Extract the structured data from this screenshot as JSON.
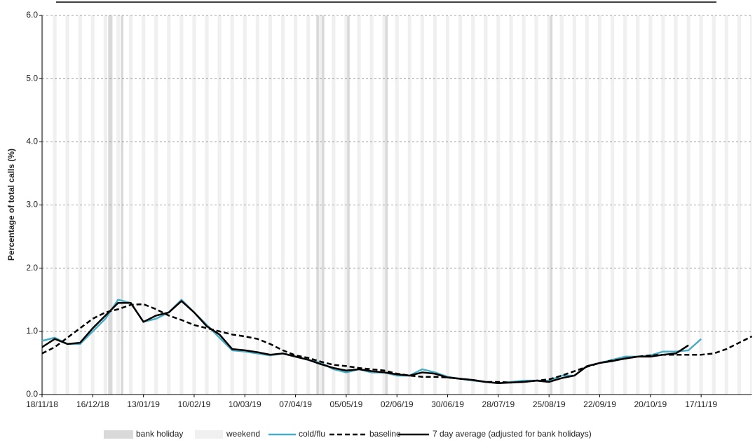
{
  "chart_data": {
    "type": "line",
    "y_label": "Percentage of total calls (%)",
    "categories": [
      "18/11/18",
      null,
      null,
      null,
      "16/12/18",
      null,
      null,
      null,
      "13/01/19",
      null,
      null,
      null,
      "10/02/19",
      null,
      null,
      null,
      "10/03/19",
      null,
      null,
      null,
      "07/04/19",
      null,
      null,
      null,
      "05/05/19",
      null,
      null,
      null,
      "02/06/19",
      null,
      null,
      null,
      "30/06/19",
      null,
      null,
      null,
      "28/07/19",
      null,
      null,
      null,
      "25/08/19",
      null,
      null,
      null,
      "22/09/19",
      null,
      null,
      null,
      "20/10/19",
      null,
      null,
      null,
      "17/11/19",
      null,
      null,
      null,
      null
    ],
    "series": [
      {
        "name": "cold/flu",
        "color": "#4bacc6",
        "style": "solid",
        "width": 2.5,
        "values": [
          0.85,
          0.9,
          0.8,
          0.8,
          1.0,
          1.2,
          1.5,
          1.45,
          1.15,
          1.2,
          1.3,
          1.5,
          1.3,
          1.1,
          0.9,
          0.7,
          0.68,
          0.65,
          0.62,
          0.65,
          0.6,
          0.55,
          0.5,
          0.4,
          0.35,
          0.4,
          0.35,
          0.35,
          0.3,
          0.3,
          0.4,
          0.35,
          0.28,
          0.25,
          0.22,
          0.2,
          0.18,
          0.2,
          0.22,
          0.22,
          0.22,
          0.3,
          0.3,
          0.45,
          0.5,
          0.55,
          0.6,
          0.6,
          0.62,
          0.68,
          0.68,
          0.7,
          0.88,
          null,
          null,
          null,
          null
        ]
      },
      {
        "name": "baseline",
        "color": "#000000",
        "style": "dashed",
        "width": 2.5,
        "values": [
          0.65,
          0.75,
          0.9,
          1.05,
          1.2,
          1.3,
          1.35,
          1.42,
          1.43,
          1.35,
          1.25,
          1.18,
          1.1,
          1.05,
          1.0,
          0.95,
          0.92,
          0.88,
          0.8,
          0.7,
          0.62,
          0.58,
          0.52,
          0.47,
          0.45,
          0.42,
          0.4,
          0.38,
          0.33,
          0.3,
          0.28,
          0.28,
          0.27,
          0.25,
          0.23,
          0.2,
          0.2,
          0.19,
          0.2,
          0.22,
          0.24,
          0.3,
          0.37,
          0.44,
          0.5,
          0.54,
          0.57,
          0.6,
          0.62,
          0.63,
          0.63,
          0.63,
          0.63,
          0.65,
          0.72,
          0.82,
          0.92
        ]
      },
      {
        "name": "7 day average (adjusted for bank holidays)",
        "color": "#000000",
        "style": "solid",
        "width": 2.5,
        "values": [
          0.75,
          0.88,
          0.8,
          0.82,
          1.05,
          1.25,
          1.45,
          1.45,
          1.15,
          1.25,
          1.3,
          1.48,
          1.3,
          1.08,
          0.95,
          0.72,
          0.7,
          0.67,
          0.63,
          0.65,
          0.6,
          0.55,
          0.48,
          0.42,
          0.38,
          0.4,
          0.37,
          0.35,
          0.32,
          0.3,
          0.35,
          0.33,
          0.27,
          0.25,
          0.23,
          0.2,
          0.18,
          0.19,
          0.2,
          0.22,
          0.2,
          0.26,
          0.3,
          0.45,
          0.5,
          0.53,
          0.57,
          0.6,
          0.6,
          0.63,
          0.65,
          0.78,
          null,
          null,
          null,
          null,
          null
        ]
      }
    ],
    "shading": [
      {
        "name": "bank holiday",
        "color": "#d9d9d9",
        "dates": [
          "25/12/18",
          "26/12/18",
          "01/01/19",
          "19/04/19",
          "22/04/19",
          "06/05/19",
          "27/05/19",
          "26/08/19"
        ]
      },
      {
        "name": "weekend",
        "color": "#f0f0f0"
      }
    ],
    "ylim": [
      0,
      6
    ],
    "yticks": [
      {
        "value": 0,
        "label": "0.0"
      },
      {
        "value": 1,
        "label": "1.0"
      },
      {
        "value": 2,
        "label": "2.0"
      },
      {
        "value": 3,
        "label": "3.0"
      },
      {
        "value": 4,
        "label": "4.0"
      },
      {
        "value": 5,
        "label": "5.0"
      },
      {
        "value": 6,
        "label": "6.0"
      }
    ],
    "grid": true
  }
}
